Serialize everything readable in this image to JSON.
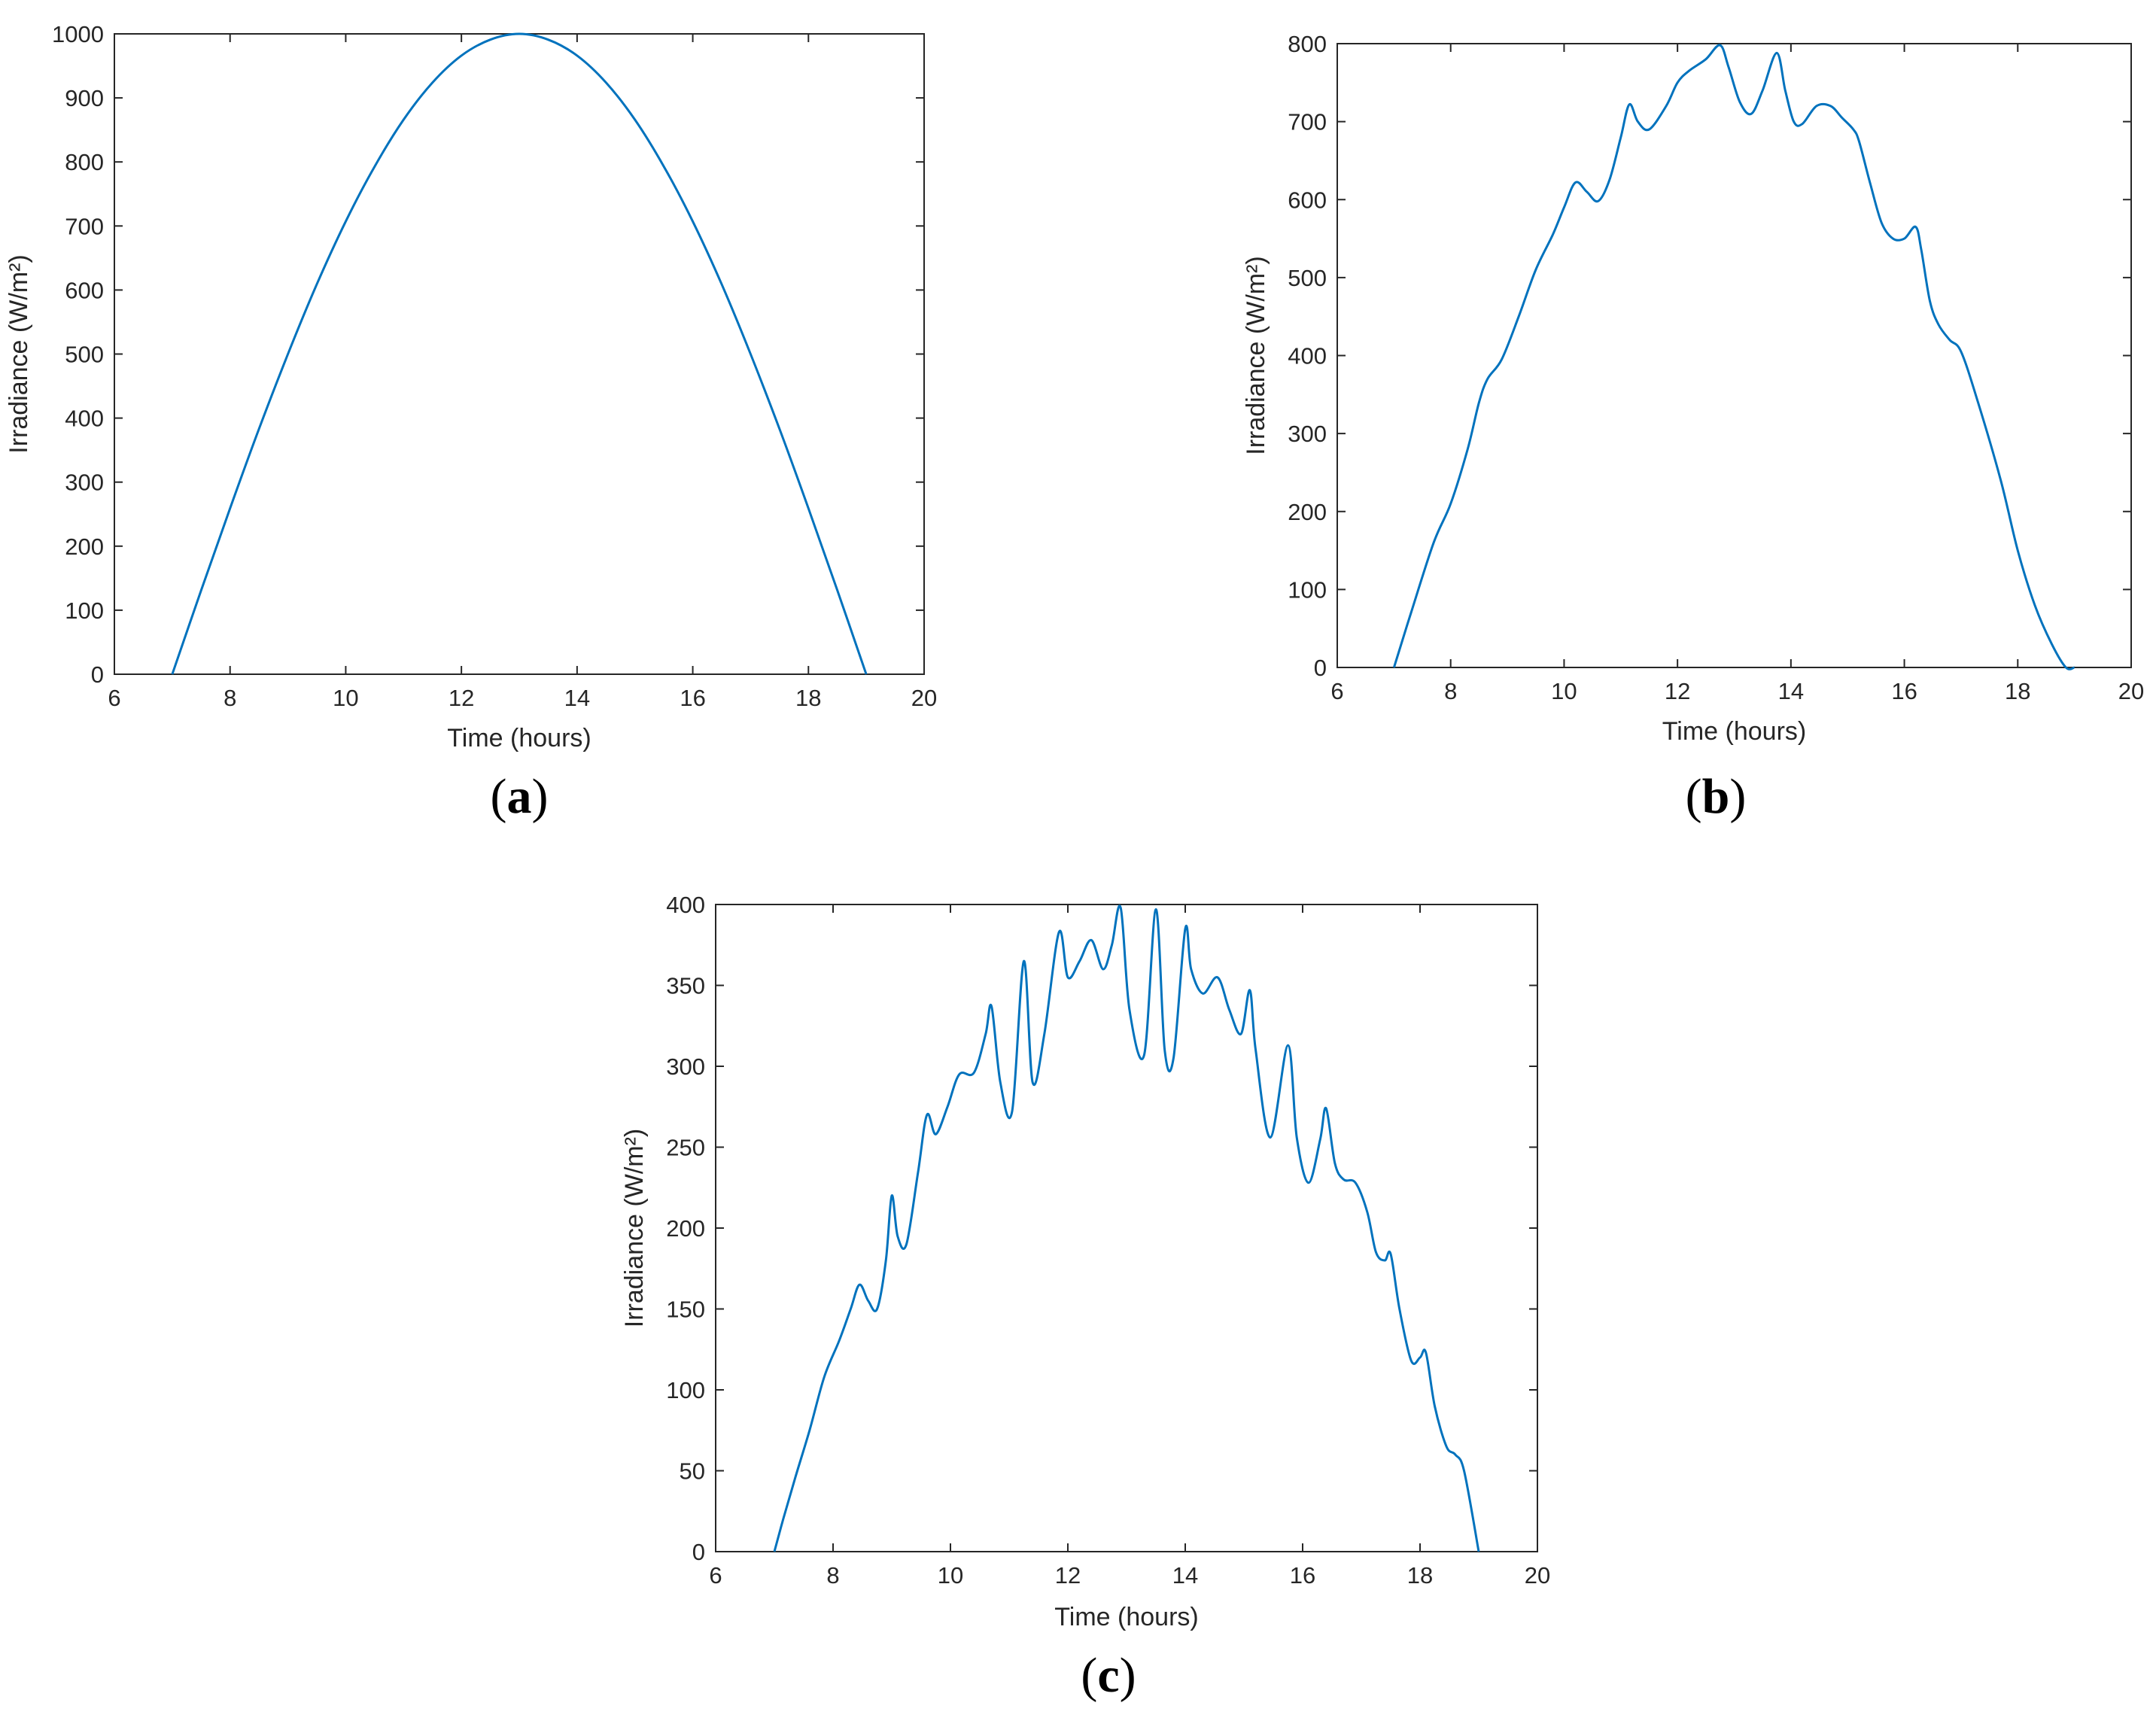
{
  "colors": {
    "line": "#0072BD",
    "axes": "#262626",
    "background": "#ffffff"
  },
  "chart_data": [
    {
      "type": "line",
      "panel_label": "a",
      "xlabel": "Time (hours)",
      "ylabel": "Irradiance (W/m²)",
      "xlim": [
        6,
        20
      ],
      "ylim": [
        0,
        1000
      ],
      "xticks": [
        "6",
        "8",
        "10",
        "12",
        "14",
        "16",
        "18",
        "20"
      ],
      "yticks": [
        "0",
        "100",
        "200",
        "300",
        "400",
        "500",
        "600",
        "700",
        "800",
        "900",
        "1000"
      ],
      "grid": false,
      "series": [
        {
          "x": [
            7,
            7.5,
            8,
            8.5,
            9,
            9.5,
            10,
            10.5,
            11,
            11.5,
            12,
            12.5,
            13,
            13.5,
            14,
            14.5,
            15,
            15.5,
            16,
            16.5,
            17,
            17.5,
            18,
            18.5,
            19
          ],
          "y": [
            0,
            131,
            259,
            383,
            500,
            609,
            707,
            793,
            866,
            924,
            966,
            991,
            1000,
            991,
            966,
            924,
            866,
            793,
            707,
            609,
            500,
            383,
            259,
            131,
            0
          ]
        }
      ]
    },
    {
      "type": "line",
      "panel_label": "b",
      "xlabel": "Time (hours)",
      "ylabel": "Irradiance (W/m²)",
      "xlim": [
        6,
        20
      ],
      "ylim": [
        0,
        800
      ],
      "xticks": [
        "6",
        "8",
        "10",
        "12",
        "14",
        "16",
        "18",
        "20"
      ],
      "yticks": [
        "0",
        "100",
        "200",
        "300",
        "400",
        "500",
        "600",
        "700",
        "800"
      ],
      "grid": false,
      "series": [
        {
          "x": [
            7.0,
            7.3,
            7.7,
            8.0,
            8.3,
            8.5,
            8.65,
            8.9,
            9.2,
            9.5,
            9.8,
            10.0,
            10.2,
            10.4,
            10.6,
            10.8,
            11.0,
            11.15,
            11.3,
            11.5,
            11.8,
            12.0,
            12.2,
            12.5,
            12.75,
            12.9,
            13.1,
            13.3,
            13.5,
            13.75,
            13.9,
            14.05,
            14.2,
            14.45,
            14.7,
            14.9,
            15.1,
            15.2,
            15.4,
            15.6,
            15.8,
            16.0,
            16.2,
            16.3,
            16.45,
            16.6,
            16.8,
            17.0,
            17.3,
            17.7,
            18.0,
            18.3,
            18.6,
            18.85,
            19.0
          ],
          "y": [
            0,
            70,
            160,
            210,
            280,
            340,
            370,
            395,
            450,
            510,
            555,
            590,
            622,
            610,
            598,
            625,
            680,
            722,
            700,
            690,
            720,
            750,
            765,
            780,
            798,
            770,
            725,
            710,
            740,
            788,
            740,
            700,
            697,
            720,
            720,
            705,
            690,
            675,
            620,
            570,
            550,
            550,
            565,
            535,
            470,
            440,
            420,
            405,
            340,
            240,
            150,
            80,
            30,
            -5,
            0
          ]
        }
      ]
    },
    {
      "type": "line",
      "panel_label": "c",
      "xlabel": "Time (hours)",
      "ylabel": "Irradiance (W/m²)",
      "xlim": [
        6,
        20
      ],
      "ylim": [
        0,
        400
      ],
      "xticks": [
        "6",
        "8",
        "10",
        "12",
        "14",
        "16",
        "18",
        "20"
      ],
      "yticks": [
        "0",
        "50",
        "100",
        "150",
        "200",
        "250",
        "300",
        "350",
        "400"
      ],
      "grid": false,
      "series": [
        {
          "x": [
            7.0,
            7.15,
            7.35,
            7.6,
            7.85,
            8.1,
            8.3,
            8.45,
            8.6,
            8.75,
            8.9,
            9.0,
            9.1,
            9.25,
            9.45,
            9.6,
            9.75,
            9.95,
            10.15,
            10.4,
            10.6,
            10.7,
            10.85,
            11.05,
            11.25,
            11.4,
            11.6,
            11.85,
            12.0,
            12.2,
            12.4,
            12.6,
            12.75,
            12.9,
            13.05,
            13.3,
            13.5,
            13.65,
            13.8,
            14.0,
            14.1,
            14.3,
            14.55,
            14.75,
            14.95,
            15.1,
            15.2,
            15.45,
            15.75,
            15.9,
            16.1,
            16.3,
            16.4,
            16.55,
            16.7,
            16.9,
            17.1,
            17.25,
            17.4,
            17.5,
            17.65,
            17.85,
            18.0,
            18.1,
            18.25,
            18.45,
            18.6,
            18.75,
            19.0
          ],
          "y": [
            0,
            20,
            45,
            75,
            108,
            130,
            150,
            165,
            155,
            150,
            180,
            220,
            195,
            190,
            235,
            270,
            258,
            275,
            295,
            296,
            320,
            337,
            290,
            272,
            365,
            290,
            320,
            383,
            355,
            365,
            378,
            360,
            375,
            398,
            335,
            307,
            397,
            310,
            305,
            385,
            360,
            345,
            355,
            335,
            320,
            347,
            310,
            256,
            313,
            256,
            228,
            255,
            274,
            240,
            230,
            228,
            210,
            185,
            180,
            184,
            150,
            118,
            120,
            123,
            90,
            65,
            60,
            50,
            0
          ]
        }
      ]
    }
  ]
}
